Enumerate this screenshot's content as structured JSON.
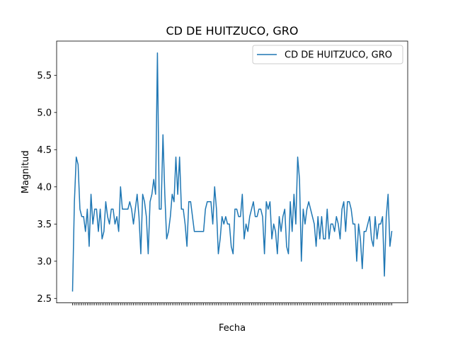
{
  "chart_data": {
    "type": "line",
    "title": "CD DE HUITZUCO, GRO",
    "xlabel": "Fecha",
    "ylabel": "Magnitud",
    "ylim": [
      2.44,
      5.96
    ],
    "yticks": [
      "2.5",
      "3.0",
      "3.5",
      "4.0",
      "4.5",
      "5.0",
      "5.5"
    ],
    "grid": false,
    "legend_position": "top-right",
    "colors": {
      "line": "#1f77b4"
    },
    "series": [
      {
        "name": "CD DE HUITZUCO, GRO",
        "values": [
          2.6,
          3.8,
          4.4,
          4.3,
          3.7,
          3.6,
          3.6,
          3.4,
          3.7,
          3.2,
          3.9,
          3.5,
          3.7,
          3.7,
          3.4,
          3.7,
          3.3,
          3.4,
          3.8,
          3.6,
          3.5,
          3.7,
          3.7,
          3.5,
          3.6,
          3.4,
          4.0,
          3.7,
          3.7,
          3.7,
          3.7,
          3.8,
          3.7,
          3.5,
          3.7,
          3.9,
          3.6,
          3.1,
          3.9,
          3.8,
          3.6,
          3.1,
          3.8,
          3.9,
          4.1,
          3.9,
          5.8,
          3.7,
          3.7,
          4.7,
          3.9,
          3.3,
          3.4,
          3.6,
          3.9,
          3.8,
          4.4,
          3.9,
          4.4,
          3.7,
          3.7,
          3.5,
          3.2,
          3.8,
          3.8,
          3.6,
          3.4,
          3.4,
          3.4,
          3.4,
          3.4,
          3.4,
          3.7,
          3.8,
          3.8,
          3.8,
          3.5,
          4.0,
          3.7,
          3.1,
          3.3,
          3.6,
          3.5,
          3.6,
          3.5,
          3.5,
          3.2,
          3.1,
          3.7,
          3.7,
          3.6,
          3.6,
          3.9,
          3.3,
          3.5,
          3.4,
          3.6,
          3.7,
          3.8,
          3.6,
          3.6,
          3.7,
          3.7,
          3.6,
          3.1,
          3.8,
          3.7,
          3.8,
          3.3,
          3.5,
          3.4,
          3.1,
          3.6,
          3.4,
          3.6,
          3.7,
          3.2,
          3.1,
          3.8,
          3.4,
          3.9,
          3.5,
          4.4,
          4.1,
          3.0,
          3.7,
          3.5,
          3.7,
          3.8,
          3.7,
          3.6,
          3.5,
          3.2,
          3.6,
          3.3,
          3.6,
          3.3,
          3.3,
          3.7,
          3.3,
          3.5,
          3.5,
          3.4,
          3.6,
          3.5,
          3.3,
          3.7,
          3.8,
          3.4,
          3.8,
          3.8,
          3.7,
          3.5,
          3.5,
          3.0,
          3.5,
          3.3,
          2.9,
          3.4,
          3.4,
          3.5,
          3.6,
          3.3,
          3.2,
          3.6,
          3.3,
          3.5,
          3.5,
          3.6,
          2.8,
          3.6,
          3.9,
          3.2,
          3.4
        ]
      }
    ]
  }
}
